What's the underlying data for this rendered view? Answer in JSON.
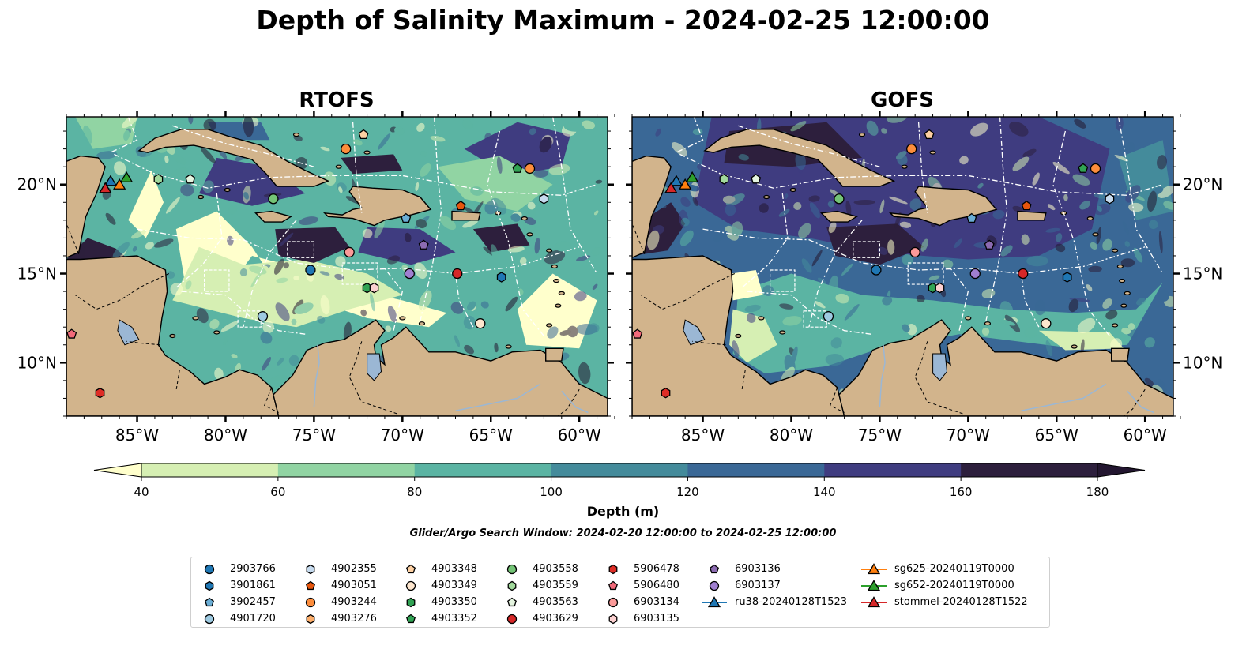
{
  "title": "Depth of Salinity Maximum - 2024-02-25 12:00:00",
  "panels": [
    {
      "title": "RTOFS",
      "model": "rtofs"
    },
    {
      "title": "GOFS",
      "model": "gofs"
    }
  ],
  "map": {
    "lon_range": [
      -89,
      -58.4
    ],
    "lat_range": [
      7,
      23.8
    ],
    "lon_ticks": [
      {
        "value": -85,
        "label": "85°W"
      },
      {
        "value": -80,
        "label": "80°W"
      },
      {
        "value": -75,
        "label": "75°W"
      },
      {
        "value": -70,
        "label": "70°W"
      },
      {
        "value": -65,
        "label": "65°W"
      },
      {
        "value": -60,
        "label": "60°W"
      }
    ],
    "lat_ticks": [
      {
        "value": 20,
        "label": "20°N"
      },
      {
        "value": 15,
        "label": "15°N"
      },
      {
        "value": 10,
        "label": "10°N"
      }
    ],
    "colors": {
      "land": "#d2b48c",
      "water": "#9bb7d4",
      "coast": "#000000",
      "eez": "#ffffff"
    }
  },
  "colorbar": {
    "label": "Depth (m)",
    "ticks": [
      40,
      60,
      80,
      100,
      120,
      140,
      160,
      180
    ],
    "colors": [
      "#ffffcc",
      "#d6efb3",
      "#91d4a3",
      "#5bb4a3",
      "#448b9b",
      "#3a6896",
      "#3f3c80",
      "#2d1f3d",
      "#231630"
    ],
    "extend": "both"
  },
  "search_window": "Glider/Argo Search Window: 2024-02-20 12:00:00 to 2024-02-25 12:00:00",
  "legend": [
    {
      "name": "2903766",
      "marker": "circle",
      "color": "#1f77b4"
    },
    {
      "name": "3901861",
      "marker": "hexagon",
      "color": "#1f77b4"
    },
    {
      "name": "3902457",
      "marker": "pentagon",
      "color": "#6baed6"
    },
    {
      "name": "4901720",
      "marker": "circle",
      "color": "#9ecae1"
    },
    {
      "name": "4902355",
      "marker": "hexagon",
      "color": "#c6dbef"
    },
    {
      "name": "4903051",
      "marker": "pentagon",
      "color": "#e6550d"
    },
    {
      "name": "4903244",
      "marker": "circle",
      "color": "#fd8d3c"
    },
    {
      "name": "4903276",
      "marker": "hexagon",
      "color": "#fdae6b"
    },
    {
      "name": "4903348",
      "marker": "pentagon",
      "color": "#fdd0a2"
    },
    {
      "name": "4903349",
      "marker": "circle",
      "color": "#fee6ce"
    },
    {
      "name": "4903350",
      "marker": "hexagon",
      "color": "#31a354"
    },
    {
      "name": "4903352",
      "marker": "pentagon",
      "color": "#31a354"
    },
    {
      "name": "4903558",
      "marker": "circle",
      "color": "#74c476"
    },
    {
      "name": "4903559",
      "marker": "hexagon",
      "color": "#a1d99b"
    },
    {
      "name": "4903563",
      "marker": "pentagon",
      "color": "#e5f5e0"
    },
    {
      "name": "4903629",
      "marker": "circle",
      "color": "#d62728"
    },
    {
      "name": "5906478",
      "marker": "hexagon",
      "color": "#de2d26"
    },
    {
      "name": "5906480",
      "marker": "pentagon",
      "color": "#f16a7a"
    },
    {
      "name": "6903134",
      "marker": "circle",
      "color": "#fb9a99"
    },
    {
      "name": "6903135",
      "marker": "hexagon",
      "color": "#fcd1d1"
    },
    {
      "name": "6903136",
      "marker": "pentagon",
      "color": "#8c6bb1"
    },
    {
      "name": "6903137",
      "marker": "circle",
      "color": "#a07fd0"
    },
    {
      "name": "ru38-20240128T1523",
      "marker": "triangle",
      "color": "#1f77b4",
      "line": true
    },
    {
      "name": "sg625-20240119T0000",
      "marker": "triangle",
      "color": "#ff7f0e",
      "line": true
    },
    {
      "name": "sg652-20240119T0000",
      "marker": "triangle",
      "color": "#2ca02c",
      "line": true
    },
    {
      "name": "stommel-20240128T1522",
      "marker": "triangle",
      "color": "#d62728",
      "line": true
    }
  ],
  "observations": [
    {
      "id": "4903244",
      "marker": "circle",
      "color": "#fd8d3c",
      "lon": -73.2,
      "lat": 22.0
    },
    {
      "id": "4903348",
      "marker": "pentagon",
      "color": "#fdd0a2",
      "lon": -72.2,
      "lat": 22.8
    },
    {
      "id": "4903559",
      "marker": "hexagon",
      "color": "#a1d99b",
      "lon": -83.8,
      "lat": 20.3
    },
    {
      "id": "4903563",
      "marker": "pentagon",
      "color": "#e5f5e0",
      "lon": -82.0,
      "lat": 20.3
    },
    {
      "id": "4903558",
      "marker": "circle",
      "color": "#74c476",
      "lon": -77.3,
      "lat": 19.2
    },
    {
      "id": "4903352",
      "marker": "pentagon",
      "color": "#31a354",
      "lon": -63.5,
      "lat": 20.9
    },
    {
      "id": "4903244",
      "marker": "circle",
      "color": "#fd8d3c",
      "lon": -62.8,
      "lat": 20.9
    },
    {
      "id": "4902355",
      "marker": "hexagon",
      "color": "#c6dbef",
      "lon": -62.0,
      "lat": 19.2
    },
    {
      "id": "4903051",
      "marker": "pentagon",
      "color": "#e6550d",
      "lon": -66.7,
      "lat": 18.8
    },
    {
      "id": "3902457",
      "marker": "pentagon",
      "color": "#6baed6",
      "lon": -69.8,
      "lat": 18.1
    },
    {
      "id": "6903134",
      "marker": "circle",
      "color": "#fb9a99",
      "lon": -73.0,
      "lat": 16.2
    },
    {
      "id": "6903136",
      "marker": "pentagon",
      "color": "#8c6bb1",
      "lon": -68.8,
      "lat": 16.6
    },
    {
      "id": "2903766",
      "marker": "circle",
      "color": "#1f77b4",
      "lon": -75.2,
      "lat": 15.2
    },
    {
      "id": "6903137",
      "marker": "circle",
      "color": "#a07fd0",
      "lon": -69.6,
      "lat": 15.0
    },
    {
      "id": "4903629",
      "marker": "circle",
      "color": "#d62728",
      "lon": -66.9,
      "lat": 15.0
    },
    {
      "id": "3901861",
      "marker": "hexagon",
      "color": "#1f77b4",
      "lon": -64.4,
      "lat": 14.8
    },
    {
      "id": "4903350",
      "marker": "hexagon",
      "color": "#31a354",
      "lon": -72.0,
      "lat": 14.2
    },
    {
      "id": "6903135",
      "marker": "hexagon",
      "color": "#fcd1d1",
      "lon": -71.6,
      "lat": 14.2
    },
    {
      "id": "4901720",
      "marker": "circle",
      "color": "#9ecae1",
      "lon": -77.9,
      "lat": 12.6
    },
    {
      "id": "4903349",
      "marker": "circle",
      "color": "#fee6ce",
      "lon": -65.6,
      "lat": 12.2
    },
    {
      "id": "5906480",
      "marker": "pentagon",
      "color": "#f16a7a",
      "lon": -88.7,
      "lat": 11.6
    },
    {
      "id": "5906478",
      "marker": "hexagon",
      "color": "#de2d26",
      "lon": -87.1,
      "lat": 8.3
    },
    {
      "id": "ru38-20240128T1523",
      "marker": "triangle",
      "color": "#1f77b4",
      "lon": -86.5,
      "lat": 20.2
    },
    {
      "id": "sg625-20240119T0000",
      "marker": "triangle",
      "color": "#ff7f0e",
      "lon": -86.0,
      "lat": 20.0
    },
    {
      "id": "sg652-20240119T0000",
      "marker": "triangle",
      "color": "#2ca02c",
      "lon": -85.6,
      "lat": 20.4
    },
    {
      "id": "stommel-20240128T1522",
      "marker": "triangle",
      "color": "#d62728",
      "lon": -86.8,
      "lat": 19.8
    }
  ]
}
